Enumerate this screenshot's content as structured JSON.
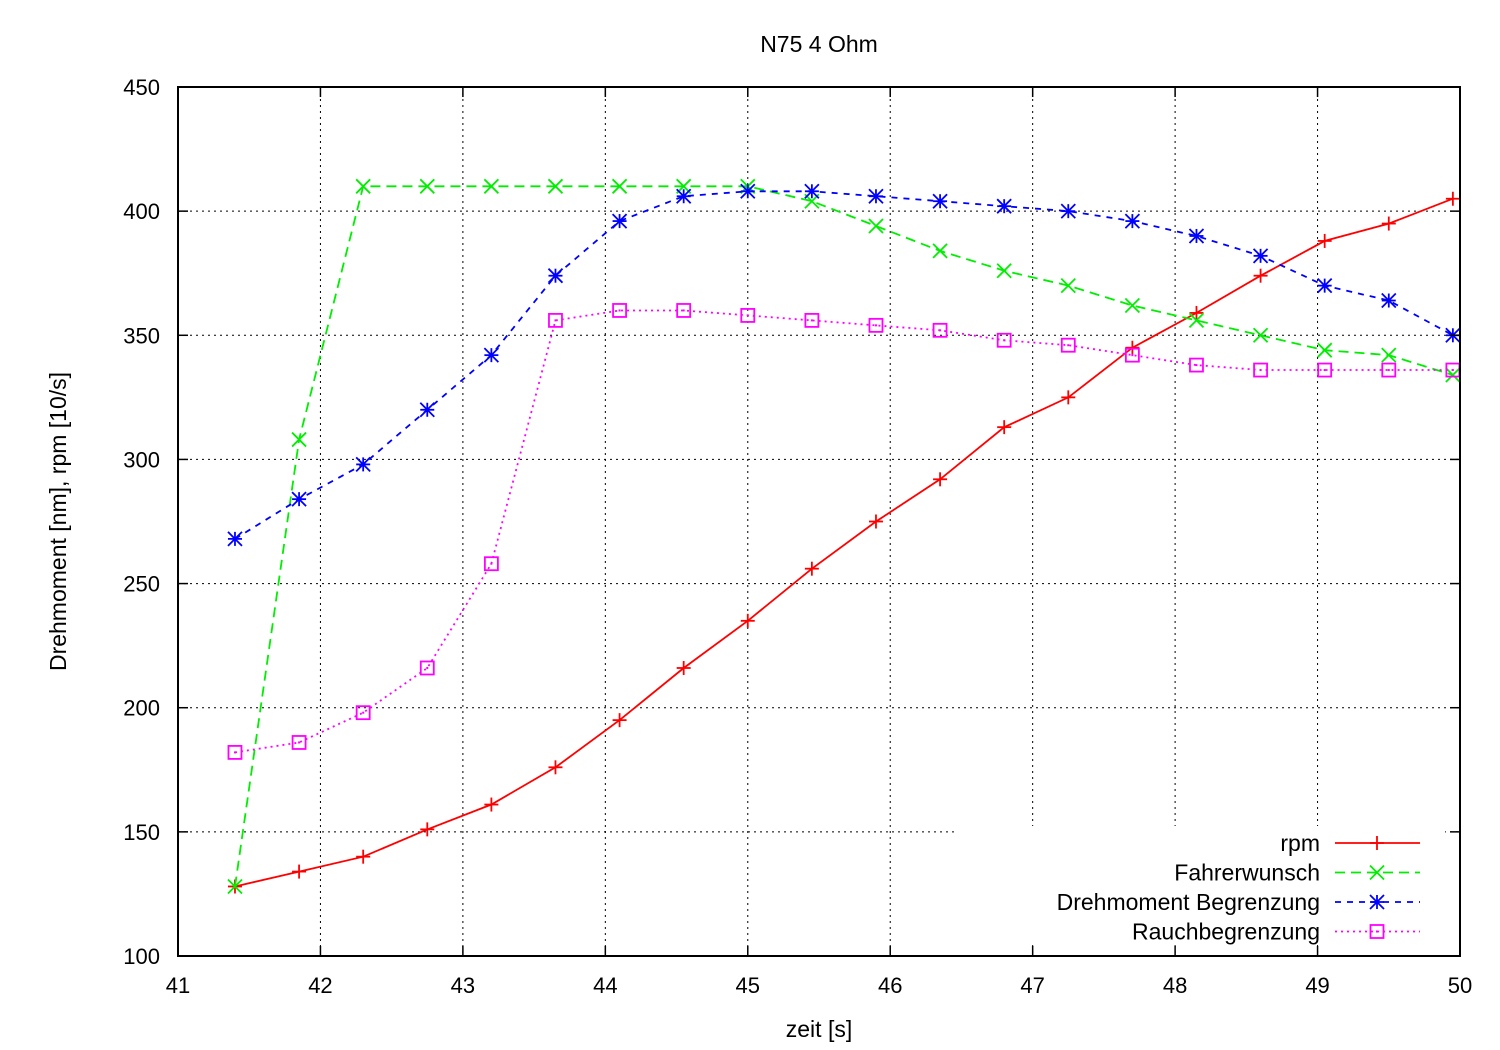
{
  "chart_data": {
    "type": "line",
    "title": "N75 4 Ohm",
    "xlabel": "zeit [s]",
    "ylabel": "Drehmoment [nm], rpm [10/s]",
    "xlim": [
      41,
      50
    ],
    "ylim": [
      100,
      450
    ],
    "xticks": [
      41,
      42,
      43,
      44,
      45,
      46,
      47,
      48,
      49,
      50
    ],
    "yticks": [
      100,
      150,
      200,
      250,
      300,
      350,
      400,
      450
    ],
    "grid": true,
    "legend_position": "bottom-right",
    "x": [
      41.4,
      41.85,
      42.3,
      42.75,
      43.2,
      43.65,
      44.1,
      44.55,
      45.0,
      45.45,
      45.9,
      46.35,
      46.8,
      47.25,
      47.7,
      48.15,
      48.6,
      49.05,
      49.5,
      49.95
    ],
    "series": [
      {
        "name": "rpm",
        "color": "#ff0000",
        "line_style": "solid",
        "marker": "plus",
        "values": [
          128,
          134,
          140,
          151,
          161,
          176,
          195,
          216,
          235,
          256,
          275,
          292,
          313,
          325,
          345,
          359,
          374,
          388,
          395,
          405
        ]
      },
      {
        "name": "Fahrerwunsch",
        "color": "#00ee00",
        "line_style": "dashed",
        "marker": "cross",
        "values": [
          128,
          308,
          410,
          410,
          410,
          410,
          410,
          410,
          410,
          404,
          394,
          384,
          376,
          370,
          362,
          356,
          350,
          344,
          342,
          334
        ]
      },
      {
        "name": "Drehmoment Begrenzung",
        "color": "#0000ff",
        "line_style": "short-dashed",
        "marker": "star",
        "values": [
          268,
          284,
          298,
          320,
          342,
          374,
          396,
          406,
          408,
          408,
          406,
          404,
          402,
          400,
          396,
          390,
          382,
          370,
          364,
          350
        ]
      },
      {
        "name": "Rauchbegrenzung",
        "color": "#ff00ff",
        "line_style": "dotted",
        "marker": "square",
        "values": [
          182,
          186,
          198,
          216,
          258,
          356,
          360,
          360,
          358,
          356,
          354,
          352,
          348,
          346,
          342,
          338,
          336,
          336,
          336,
          336
        ]
      }
    ]
  }
}
